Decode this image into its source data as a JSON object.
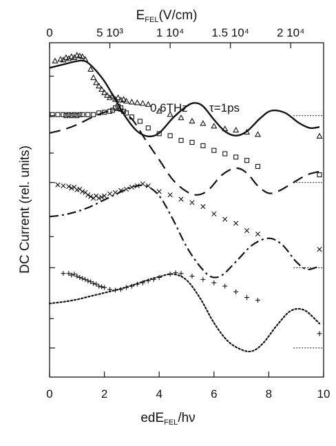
{
  "chart_data": {
    "type": "line",
    "title": "",
    "annotation": "0.6THz",
    "annotation_tau": "τ=1ps",
    "xlabel": {
      "base": "edE",
      "sub": "FEL",
      "rest": "/hν"
    },
    "ylabel": "DC Current (rel. units)",
    "top_label": {
      "base": "E",
      "sub": "FEL",
      "rest": "(V/cm)"
    },
    "xlim": [
      0,
      10
    ],
    "ylim": [
      0,
      10
    ],
    "x_ticks": [
      0,
      2,
      4,
      6,
      8,
      10
    ],
    "x_tick_labels": [
      "0",
      "2",
      "4",
      "6",
      "8",
      "10"
    ],
    "top_ticks": [
      0,
      2.2,
      4.4,
      6.6,
      8.8
    ],
    "top_tick_labels": [
      "0",
      "5 10³",
      "1 10⁴",
      "1.5 10⁴",
      "2 10⁴"
    ],
    "grid": false,
    "series": [
      {
        "marker": "triangle",
        "line": "solid",
        "baseline": 7.82,
        "markers": [
          [
            0.2,
            9.45
          ],
          [
            0.4,
            9.5
          ],
          [
            0.5,
            9.48
          ],
          [
            0.6,
            9.55
          ],
          [
            0.7,
            9.52
          ],
          [
            0.8,
            9.58
          ],
          [
            0.9,
            9.55
          ],
          [
            1.0,
            9.62
          ],
          [
            1.1,
            9.6
          ],
          [
            1.2,
            9.58
          ],
          [
            1.3,
            9.5
          ],
          [
            1.5,
            9.2
          ],
          [
            1.6,
            8.95
          ],
          [
            1.7,
            8.8
          ],
          [
            1.8,
            8.7
          ],
          [
            1.9,
            8.6
          ],
          [
            2.0,
            8.5
          ],
          [
            2.1,
            8.42
          ],
          [
            2.2,
            8.35
          ],
          [
            2.3,
            8.4
          ],
          [
            2.4,
            8.3
          ],
          [
            2.5,
            8.35
          ],
          [
            2.6,
            8.28
          ],
          [
            2.7,
            8.3
          ],
          [
            2.8,
            8.25
          ],
          [
            3.0,
            8.22
          ],
          [
            3.2,
            8.2
          ],
          [
            3.4,
            8.18
          ],
          [
            3.6,
            8.15
          ],
          [
            4.0,
            7.95
          ],
          [
            4.4,
            7.85
          ],
          [
            4.8,
            7.75
          ],
          [
            5.2,
            7.65
          ],
          [
            5.6,
            7.58
          ],
          [
            6.0,
            7.5
          ],
          [
            6.4,
            7.42
          ],
          [
            6.8,
            7.38
          ],
          [
            7.2,
            7.32
          ],
          [
            7.6,
            7.25
          ],
          [
            9.85,
            7.2
          ]
        ],
        "curve": [
          [
            0,
            9.25
          ],
          [
            0.5,
            9.35
          ],
          [
            1.0,
            9.45
          ],
          [
            1.3,
            9.45
          ],
          [
            1.6,
            9.25
          ],
          [
            2.0,
            8.85
          ],
          [
            2.4,
            8.3
          ],
          [
            2.8,
            7.75
          ],
          [
            3.2,
            7.35
          ],
          [
            3.6,
            7.2
          ],
          [
            4.0,
            7.3
          ],
          [
            4.5,
            7.75
          ],
          [
            5.0,
            8.1
          ],
          [
            5.3,
            8.2
          ],
          [
            5.6,
            8.1
          ],
          [
            6.0,
            7.7
          ],
          [
            6.4,
            7.35
          ],
          [
            6.8,
            7.22
          ],
          [
            7.2,
            7.35
          ],
          [
            7.7,
            7.75
          ],
          [
            8.1,
            7.97
          ],
          [
            8.6,
            7.9
          ],
          [
            9.1,
            7.6
          ],
          [
            9.5,
            7.45
          ],
          [
            9.85,
            7.48
          ]
        ]
      },
      {
        "marker": "square",
        "line": "dashed",
        "baseline": 5.82,
        "markers": [
          [
            0.1,
            7.85
          ],
          [
            0.3,
            7.85
          ],
          [
            0.5,
            7.85
          ],
          [
            0.6,
            7.82
          ],
          [
            0.7,
            7.85
          ],
          [
            0.8,
            7.82
          ],
          [
            0.9,
            7.85
          ],
          [
            1.0,
            7.82
          ],
          [
            1.1,
            7.85
          ],
          [
            1.2,
            7.85
          ],
          [
            1.4,
            7.85
          ],
          [
            1.6,
            7.85
          ],
          [
            1.8,
            7.9
          ],
          [
            2.0,
            7.92
          ],
          [
            2.2,
            7.95
          ],
          [
            2.3,
            7.98
          ],
          [
            2.4,
            8.05
          ],
          [
            2.5,
            8.1
          ],
          [
            2.6,
            8.05
          ],
          [
            2.7,
            7.95
          ],
          [
            2.8,
            7.9
          ],
          [
            3.0,
            7.78
          ],
          [
            3.3,
            7.65
          ],
          [
            3.6,
            7.45
          ],
          [
            4.0,
            7.28
          ],
          [
            4.4,
            7.22
          ],
          [
            4.8,
            7.08
          ],
          [
            5.2,
            7.02
          ],
          [
            5.6,
            6.92
          ],
          [
            6.0,
            6.78
          ],
          [
            6.4,
            6.68
          ],
          [
            6.8,
            6.58
          ],
          [
            7.2,
            6.48
          ],
          [
            7.6,
            6.3
          ],
          [
            9.85,
            6.05
          ]
        ],
        "curve": [
          [
            0,
            7.3
          ],
          [
            0.5,
            7.4
          ],
          [
            1.0,
            7.55
          ],
          [
            1.5,
            7.75
          ],
          [
            2.0,
            7.92
          ],
          [
            2.5,
            7.98
          ],
          [
            3.0,
            7.72
          ],
          [
            3.5,
            7.1
          ],
          [
            4.0,
            6.5
          ],
          [
            4.5,
            5.9
          ],
          [
            5.0,
            5.55
          ],
          [
            5.4,
            5.45
          ],
          [
            5.8,
            5.6
          ],
          [
            6.3,
            6.05
          ],
          [
            6.8,
            6.25
          ],
          [
            7.2,
            6.1
          ],
          [
            7.6,
            5.72
          ],
          [
            8.0,
            5.5
          ],
          [
            8.4,
            5.58
          ],
          [
            8.9,
            5.82
          ],
          [
            9.4,
            6.05
          ],
          [
            9.85,
            6.15
          ]
        ]
      },
      {
        "marker": "x",
        "line": "dash-dot",
        "baseline": 3.27,
        "markers": [
          [
            0.3,
            5.75
          ],
          [
            0.5,
            5.72
          ],
          [
            0.7,
            5.7
          ],
          [
            0.8,
            5.65
          ],
          [
            0.9,
            5.68
          ],
          [
            1.0,
            5.6
          ],
          [
            1.1,
            5.62
          ],
          [
            1.2,
            5.55
          ],
          [
            1.3,
            5.52
          ],
          [
            1.4,
            5.45
          ],
          [
            1.5,
            5.4
          ],
          [
            1.6,
            5.35
          ],
          [
            1.7,
            5.42
          ],
          [
            1.8,
            5.35
          ],
          [
            1.9,
            5.38
          ],
          [
            2.0,
            5.42
          ],
          [
            2.2,
            5.48
          ],
          [
            2.4,
            5.52
          ],
          [
            2.6,
            5.58
          ],
          [
            2.8,
            5.62
          ],
          [
            3.0,
            5.68
          ],
          [
            3.2,
            5.72
          ],
          [
            3.4,
            5.78
          ],
          [
            3.6,
            5.72
          ],
          [
            4.0,
            5.55
          ],
          [
            4.4,
            5.45
          ],
          [
            4.8,
            5.32
          ],
          [
            5.2,
            5.22
          ],
          [
            5.6,
            5.1
          ],
          [
            6.0,
            4.88
          ],
          [
            6.4,
            4.72
          ],
          [
            6.8,
            4.6
          ],
          [
            7.2,
            4.38
          ],
          [
            7.6,
            4.28
          ],
          [
            9.85,
            3.82
          ]
        ],
        "curve": [
          [
            0,
            4.8
          ],
          [
            0.5,
            4.85
          ],
          [
            1.0,
            4.95
          ],
          [
            1.5,
            5.1
          ],
          [
            2.0,
            5.3
          ],
          [
            2.5,
            5.5
          ],
          [
            3.0,
            5.68
          ],
          [
            3.5,
            5.72
          ],
          [
            4.0,
            5.42
          ],
          [
            4.5,
            4.72
          ],
          [
            5.0,
            3.9
          ],
          [
            5.5,
            3.3
          ],
          [
            5.9,
            3.0
          ],
          [
            6.3,
            3.05
          ],
          [
            6.8,
            3.45
          ],
          [
            7.4,
            3.95
          ],
          [
            8.0,
            4.15
          ],
          [
            8.5,
            3.95
          ],
          [
            9.0,
            3.45
          ],
          [
            9.4,
            3.22
          ],
          [
            9.85,
            3.32
          ]
        ]
      },
      {
        "marker": "plus",
        "line": "dotted",
        "baseline": 0.87,
        "markers": [
          [
            0.5,
            3.1
          ],
          [
            0.7,
            3.1
          ],
          [
            0.8,
            3.05
          ],
          [
            0.9,
            3.08
          ],
          [
            1.0,
            3.02
          ],
          [
            1.1,
            2.98
          ],
          [
            1.2,
            2.95
          ],
          [
            1.3,
            2.92
          ],
          [
            1.4,
            2.88
          ],
          [
            1.5,
            2.85
          ],
          [
            1.6,
            2.8
          ],
          [
            1.7,
            2.78
          ],
          [
            1.8,
            2.72
          ],
          [
            1.9,
            2.7
          ],
          [
            2.0,
            2.68
          ],
          [
            2.2,
            2.62
          ],
          [
            2.4,
            2.6
          ],
          [
            2.6,
            2.62
          ],
          [
            2.8,
            2.68
          ],
          [
            3.0,
            2.72
          ],
          [
            3.2,
            2.78
          ],
          [
            3.4,
            2.82
          ],
          [
            3.6,
            2.88
          ],
          [
            3.8,
            2.92
          ],
          [
            4.0,
            2.98
          ],
          [
            4.4,
            3.08
          ],
          [
            4.6,
            3.12
          ],
          [
            4.8,
            3.1
          ],
          [
            5.2,
            3.02
          ],
          [
            5.6,
            2.92
          ],
          [
            6.0,
            2.82
          ],
          [
            6.4,
            2.72
          ],
          [
            6.8,
            2.55
          ],
          [
            7.2,
            2.38
          ],
          [
            7.6,
            2.3
          ],
          [
            9.85,
            1.3
          ]
        ],
        "curve": [
          [
            0,
            2.2
          ],
          [
            0.5,
            2.25
          ],
          [
            1.0,
            2.32
          ],
          [
            1.5,
            2.42
          ],
          [
            2.0,
            2.52
          ],
          [
            2.5,
            2.62
          ],
          [
            3.0,
            2.74
          ],
          [
            3.5,
            2.88
          ],
          [
            4.0,
            3.0
          ],
          [
            4.5,
            3.08
          ],
          [
            5.0,
            2.9
          ],
          [
            5.5,
            2.35
          ],
          [
            6.0,
            1.62
          ],
          [
            6.5,
            1.08
          ],
          [
            7.0,
            0.82
          ],
          [
            7.4,
            0.78
          ],
          [
            7.8,
            1.02
          ],
          [
            8.3,
            1.55
          ],
          [
            8.8,
            1.98
          ],
          [
            9.3,
            2.0
          ],
          [
            9.85,
            1.6
          ]
        ]
      }
    ]
  }
}
